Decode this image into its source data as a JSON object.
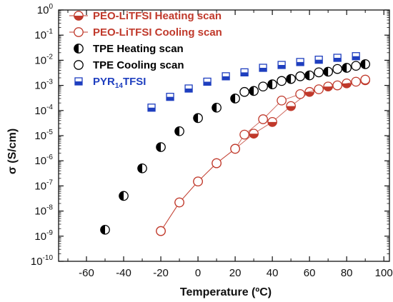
{
  "chart_data": {
    "type": "scatter",
    "title": "",
    "xlabel": "Temperature (ºC)",
    "ylabel": "σ (S/cm)",
    "xlim": [
      -75,
      103
    ],
    "ylim_log10": [
      -10,
      0
    ],
    "yscale": "log",
    "x_ticks": [
      -60,
      -40,
      -20,
      0,
      20,
      40,
      60,
      80,
      100
    ],
    "x_tick_labels": [
      "-60",
      "-40",
      "-20",
      "0",
      "20",
      "40",
      "60",
      "80",
      "100"
    ],
    "y_tick_exponents": [
      -10,
      -9,
      -8,
      -7,
      -6,
      -5,
      -4,
      -3,
      -2,
      -1,
      0
    ],
    "y_tick_base": "10",
    "grid": false,
    "legend_position": "top-left",
    "series": [
      {
        "name": "PEO-LiTFSI Heating scan",
        "name_subscript": "",
        "name_tail": "",
        "marker": "circle-half-bottom-filled",
        "color": "#c0392b",
        "line": true,
        "x": [
          -20,
          -10,
          0,
          10,
          20,
          30,
          40,
          50,
          60,
          70,
          80,
          90
        ],
        "y": [
          1.6e-09,
          2.2e-08,
          1.5e-07,
          8e-07,
          3e-06,
          1.2e-05,
          3.5e-05,
          0.00015,
          0.00055,
          0.0009,
          0.0012,
          0.0016
        ]
      },
      {
        "name": "PEO-LiTFSI Cooling scan",
        "name_subscript": "",
        "name_tail": "",
        "marker": "circle-open",
        "color": "#c0392b",
        "line": true,
        "x": [
          -20,
          -10,
          0,
          10,
          20,
          25,
          35,
          45,
          55,
          65,
          75,
          85,
          90
        ],
        "y": [
          1.6e-09,
          2.2e-08,
          1.5e-07,
          8e-07,
          3e-06,
          1.1e-05,
          4.5e-05,
          0.00025,
          0.00045,
          0.0007,
          0.001,
          0.0014,
          0.0017
        ]
      },
      {
        "name": "TPE Heating scan",
        "name_subscript": "",
        "name_tail": "",
        "marker": "circle-half-left-filled",
        "color": "#000000",
        "line": false,
        "x": [
          -50,
          -40,
          -30,
          -20,
          -10,
          0,
          10,
          20,
          30,
          40,
          50,
          60,
          70,
          80,
          90
        ],
        "y": [
          1.8e-09,
          4e-08,
          5e-07,
          3.5e-06,
          1.5e-05,
          5e-05,
          0.00013,
          0.0003,
          0.0006,
          0.0011,
          0.0018,
          0.0025,
          0.0035,
          0.005,
          0.007
        ]
      },
      {
        "name": "TPE Cooling scan",
        "name_subscript": "",
        "name_tail": "",
        "marker": "circle-open",
        "color": "#000000",
        "line": false,
        "x": [
          25,
          35,
          45,
          55,
          65,
          75,
          85
        ],
        "y": [
          0.00055,
          0.0009,
          0.0015,
          0.0023,
          0.0033,
          0.0045,
          0.006
        ]
      },
      {
        "name": "PYR",
        "name_subscript": "14",
        "name_tail": "TFSI",
        "marker": "square-half-bottom-filled",
        "color": "#1f3fbf",
        "line": false,
        "x": [
          -25,
          -15,
          -5,
          5,
          15,
          25,
          35,
          45,
          55,
          65,
          75,
          85
        ],
        "y": [
          0.00013,
          0.00035,
          0.00075,
          0.0014,
          0.0023,
          0.0033,
          0.005,
          0.0065,
          0.0085,
          0.0105,
          0.0125,
          0.0145
        ]
      }
    ]
  }
}
